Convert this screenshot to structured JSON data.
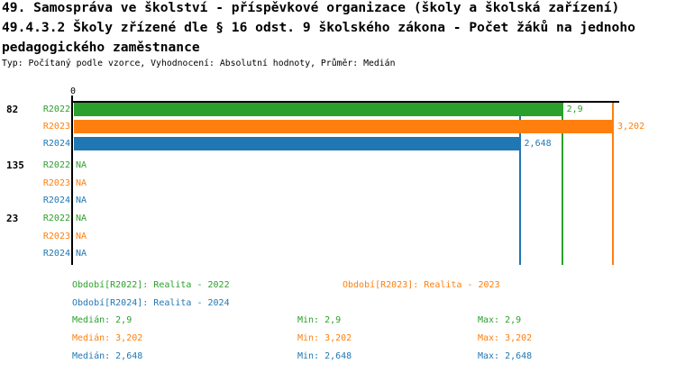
{
  "header": {
    "title_line1": "49. Samospráva ve školství - příspěvkové organizace (školy a školská zařízení)",
    "title_line2": "49.4.3.2 Školy zřízené dle § 16 odst. 9 školského zákona - Počet žáků na jednoho",
    "title_line3": "pedagogického zaměstnance",
    "subtitle": "Typ: Počítaný podle vzorce, Vyhodnocení: Absolutní hodnoty, Průměr: Medián"
  },
  "colors": {
    "axis": "#000000",
    "r2022": "#2ca02c",
    "r2023": "#ff7f0e",
    "r2024": "#1f77b4"
  },
  "chart_data": {
    "type": "bar",
    "orientation": "horizontal",
    "title": "49.4.3.2 Školy zřízené dle § 16 odst. 9 školského zákona - Počet žáků na jednoho pedagogického zaměstnance",
    "subtitle": "Typ: Počítaný podle vzorce, Vyhodnocení: Absolutní hodnoty, Průměr: Medián",
    "xlim": [
      0,
      3.202
    ],
    "axis": {
      "origin_label": "0"
    },
    "series": [
      "R2022",
      "R2023",
      "R2024"
    ],
    "groups": [
      {
        "label": "82",
        "values": [
          2.9,
          3.202,
          2.648
        ],
        "display_values": [
          "2,9",
          "3,202",
          "2,648"
        ]
      },
      {
        "label": "135",
        "values": [
          null,
          null,
          null
        ],
        "display_values": [
          "NA",
          "NA",
          "NA"
        ]
      },
      {
        "label": "23",
        "values": [
          null,
          null,
          null
        ],
        "display_values": [
          "NA",
          "NA",
          "NA"
        ]
      }
    ],
    "reference_lines": [
      {
        "series": "R2022",
        "value": 2.9
      },
      {
        "series": "R2023",
        "value": 3.202
      },
      {
        "series": "R2024",
        "value": 2.648
      }
    ]
  },
  "legend": {
    "items": [
      {
        "label": "Období[R2022]: Realita - 2022",
        "series": "r2022"
      },
      {
        "label": "Období[R2023]: Realita - 2023",
        "series": "r2023"
      },
      {
        "label": "Období[R2024]: Realita - 2024",
        "series": "r2024"
      }
    ]
  },
  "stats": {
    "rows": [
      {
        "series": "r2022",
        "median": "Medián: 2,9",
        "min": "Min: 2,9",
        "max": "Max: 2,9"
      },
      {
        "series": "r2023",
        "median": "Medián: 3,202",
        "min": "Min: 3,202",
        "max": "Max: 3,202"
      },
      {
        "series": "r2024",
        "median": "Medián: 2,648",
        "min": "Min: 2,648",
        "max": "Max: 2,648"
      }
    ]
  }
}
